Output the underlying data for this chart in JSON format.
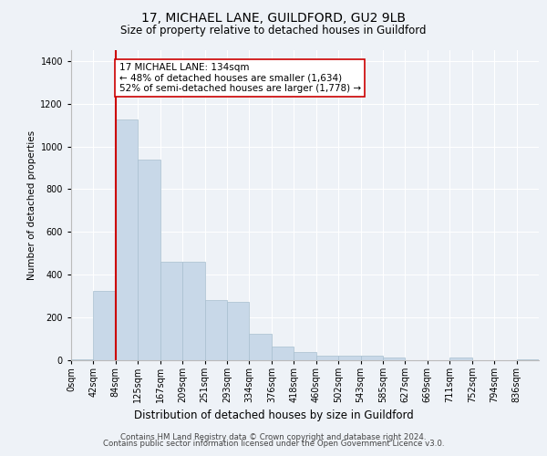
{
  "title": "17, MICHAEL LANE, GUILDFORD, GU2 9LB",
  "subtitle": "Size of property relative to detached houses in Guildford",
  "xlabel": "Distribution of detached houses by size in Guildford",
  "ylabel": "Number of detached properties",
  "footnote1": "Contains HM Land Registry data © Crown copyright and database right 2024.",
  "footnote2": "Contains public sector information licensed under the Open Government Licence v3.0.",
  "annotation_line1": "17 MICHAEL LANE: 134sqm",
  "annotation_line2": "← 48% of detached houses are smaller (1,634)",
  "annotation_line3": "52% of semi-detached houses are larger (1,778) →",
  "bar_color": "#c8d8e8",
  "bar_edge_color": "#a8bfcf",
  "red_line_color": "#cc0000",
  "annotation_box_color": "#ffffff",
  "annotation_box_edge": "#cc0000",
  "background_color": "#eef2f7",
  "plot_bg_color": "#eef2f7",
  "grid_color": "#ffffff",
  "bin_labels": [
    "0sqm",
    "42sqm",
    "84sqm",
    "125sqm",
    "167sqm",
    "209sqm",
    "251sqm",
    "293sqm",
    "334sqm",
    "376sqm",
    "418sqm",
    "460sqm",
    "502sqm",
    "543sqm",
    "585sqm",
    "627sqm",
    "669sqm",
    "711sqm",
    "752sqm",
    "794sqm",
    "836sqm"
  ],
  "bar_heights": [
    5,
    325,
    1125,
    940,
    460,
    460,
    280,
    275,
    125,
    65,
    38,
    22,
    22,
    22,
    12,
    0,
    0,
    12,
    0,
    0,
    5
  ],
  "ylim": [
    0,
    1450
  ],
  "yticks": [
    0,
    200,
    400,
    600,
    800,
    1000,
    1200,
    1400
  ],
  "red_line_bin_index": 2,
  "title_fontsize": 10,
  "subtitle_fontsize": 8.5,
  "ylabel_fontsize": 7.5,
  "xlabel_fontsize": 8.5,
  "tick_fontsize": 7,
  "annotation_fontsize": 7.5,
  "footnote_fontsize": 6.2
}
